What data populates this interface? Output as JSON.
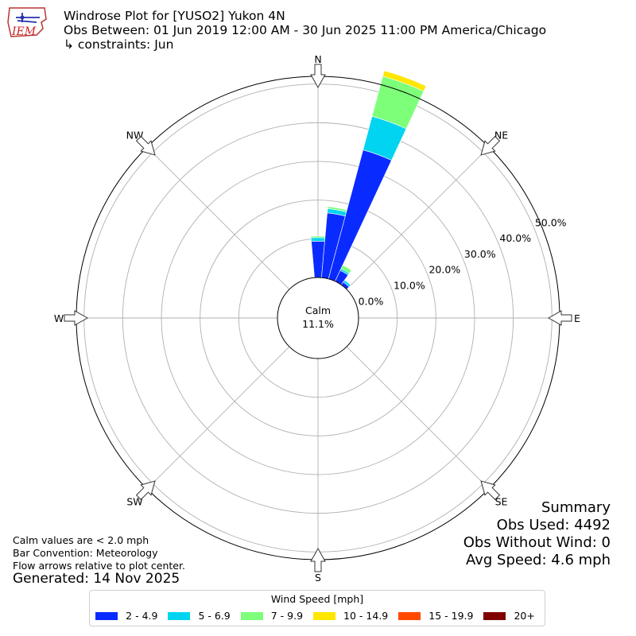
{
  "header": {
    "title": "Windrose Plot for [YUSO2] Yukon 4N",
    "subtitle": "Obs Between: 01 Jun 2019 12:00 AM - 30 Jun 2025 11:00 PM America/Chicago",
    "constraints": "↳ constraints: Jun"
  },
  "logo": {
    "text": "IEM",
    "color": "#cc2222"
  },
  "notes": {
    "calm": "Calm values are < 2.0 mph",
    "convention": "Bar Convention: Meteorology",
    "arrows": "Flow arrows relative to plot center.",
    "generated": "Generated: 14 Nov 2025"
  },
  "summary": {
    "title": "Summary",
    "obs_used": "Obs Used: 4492",
    "obs_without_wind": "Obs Without Wind: 0",
    "avg_speed": "Avg Speed: 4.6 mph"
  },
  "legend": {
    "title": "Wind Speed [mph]",
    "items": [
      {
        "label": "2 - 4.9",
        "color": "#0a2bff"
      },
      {
        "label": "5 - 6.9",
        "color": "#00d4f0"
      },
      {
        "label": "7 - 9.9",
        "color": "#7dff7a"
      },
      {
        "label": "10 - 14.9",
        "color": "#ffe600"
      },
      {
        "label": "15 - 19.9",
        "color": "#ff4a00"
      },
      {
        "label": "20+",
        "color": "#800000"
      }
    ]
  },
  "chart_data": {
    "type": "windrose",
    "calm_label": "Calm",
    "calm_value": "11.1%",
    "radial_ticks": [
      0,
      10,
      20,
      30,
      40,
      50
    ],
    "radial_tick_labels": [
      "0.0%",
      "10.0%",
      "20.0%",
      "30.0%",
      "40.0%",
      "50.0%"
    ],
    "radial_max": 52,
    "directions": [
      "N",
      "NE",
      "E",
      "SE",
      "S",
      "SW",
      "W",
      "NW"
    ],
    "bar_width_deg": 10,
    "bins": [
      "2 - 4.9",
      "5 - 6.9",
      "7 - 9.9",
      "10 - 14.9",
      "15 - 19.9",
      "20+"
    ],
    "bars": [
      {
        "direction_deg": 0,
        "values": [
          9.4,
          0.9,
          0.4,
          0,
          0,
          0
        ]
      },
      {
        "direction_deg": 10,
        "values": [
          16.8,
          1.1,
          0.5,
          0,
          0,
          0
        ]
      },
      {
        "direction_deg": 20,
        "values": [
          34.5,
          9.0,
          10.7,
          1.5,
          0,
          0
        ]
      },
      {
        "direction_deg": 30,
        "values": [
          3.1,
          0.5,
          1.0,
          0,
          0,
          0
        ]
      },
      {
        "direction_deg": 40,
        "values": [
          0.9,
          0.6,
          0,
          0,
          0,
          0
        ]
      }
    ]
  }
}
